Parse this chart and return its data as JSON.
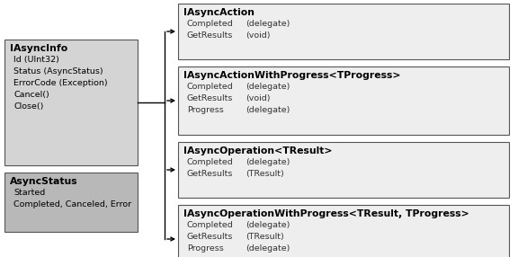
{
  "fig_w": 5.76,
  "fig_h": 2.86,
  "dpi": 100,
  "bg": "#ffffff",
  "left_boxes": [
    {
      "label": "IAsyncInfo",
      "lines": [
        "Id (UInt32)",
        "Status (AsyncStatus)",
        "ErrorCode (Exception)",
        "Cancel()",
        "Close()"
      ],
      "xp": 5,
      "yp": 44,
      "wp": 148,
      "hp": 140,
      "fill": "#d4d4d4"
    },
    {
      "label": "AsyncStatus",
      "lines": [
        "Started",
        "Completed, Canceled, Error"
      ],
      "xp": 5,
      "yp": 192,
      "wp": 148,
      "hp": 66,
      "fill": "#b8b8b8"
    }
  ],
  "right_boxes": [
    {
      "label": "IAsyncAction",
      "members": [
        [
          "Completed",
          "(delegate)"
        ],
        [
          "GetResults",
          "(void)"
        ]
      ],
      "xp": 198,
      "yp": 4,
      "wp": 368,
      "hp": 62,
      "fill": "#eeeeee"
    },
    {
      "label": "IAsyncActionWithProgress<TProgress>",
      "members": [
        [
          "Completed",
          "(delegate)"
        ],
        [
          "GetResults",
          "(void)"
        ],
        [
          "Progress",
          "(delegate)"
        ]
      ],
      "xp": 198,
      "yp": 74,
      "wp": 368,
      "hp": 76,
      "fill": "#eeeeee"
    },
    {
      "label": "IAsyncOperation<TResult>",
      "members": [
        [
          "Completed",
          "(delegate)"
        ],
        [
          "GetResults",
          "(TResult)"
        ]
      ],
      "xp": 198,
      "yp": 158,
      "wp": 368,
      "hp": 62,
      "fill": "#eeeeee"
    },
    {
      "label": "IAsyncOperationWithProgress<TResult, TProgress>",
      "members": [
        [
          "Completed",
          "(delegate)"
        ],
        [
          "GetResults",
          "(TResult)"
        ],
        [
          "Progress",
          "(delegate)"
        ]
      ],
      "xp": 198,
      "yp": 228,
      "wp": 368,
      "hp": 76,
      "fill": "#eeeeee"
    }
  ],
  "arrow_x0p": 153,
  "arrow_xbp": 183,
  "arrow_x1p": 198,
  "arrow_y0p": 114,
  "arrow_ytp": [
    35,
    112,
    189,
    266
  ],
  "fs_title": 7.8,
  "fs_body": 6.8,
  "col2_xp": 75,
  "lpad": 6,
  "tpad": 5,
  "lh": 13
}
